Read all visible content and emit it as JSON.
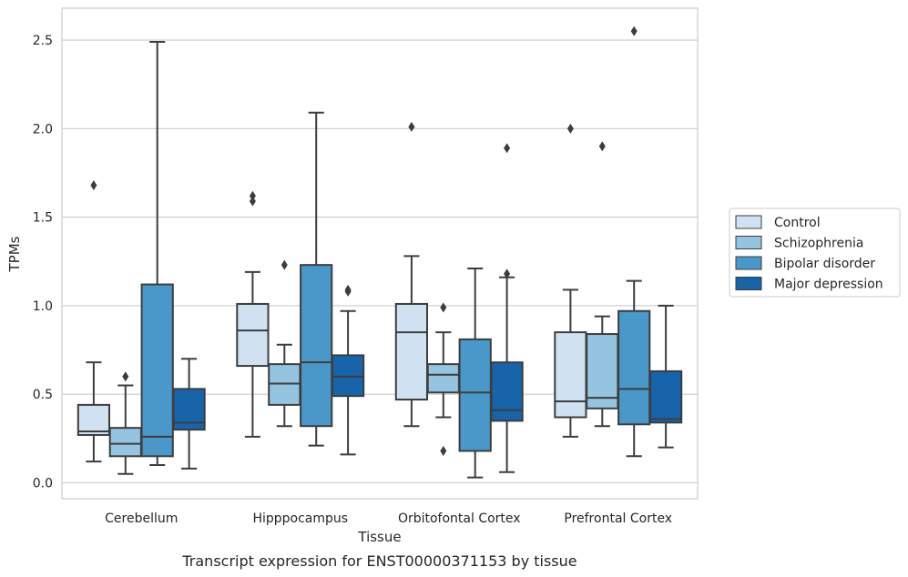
{
  "caption": "Transcript expression for ENST00000371153 by tissue",
  "chart_data": {
    "type": "box",
    "xlabel": "Tissue",
    "ylabel": "TPMs",
    "ylim": [
      -0.09,
      2.68
    ],
    "yticks": [
      "0.0",
      "0.5",
      "1.0",
      "1.5",
      "2.0",
      "2.5"
    ],
    "grid": true,
    "legend_position": "right",
    "categories": [
      "Cerebellum",
      "Hipppocampus",
      "Orbitofontal Cortex",
      "Prefrontal Cortex"
    ],
    "series": [
      {
        "name": "Control",
        "color": "#d0e1f2",
        "boxes": [
          {
            "whislo": 0.12,
            "q1": 0.27,
            "med": 0.29,
            "q3": 0.44,
            "whishi": 0.68,
            "fliers": [
              1.68
            ]
          },
          {
            "whislo": 0.26,
            "q1": 0.66,
            "med": 0.86,
            "q3": 1.01,
            "whishi": 1.19,
            "fliers": [
              1.59,
              1.62
            ]
          },
          {
            "whislo": 0.32,
            "q1": 0.47,
            "med": 0.85,
            "q3": 1.01,
            "whishi": 1.28,
            "fliers": [
              2.01
            ]
          },
          {
            "whislo": 0.26,
            "q1": 0.37,
            "med": 0.46,
            "q3": 0.85,
            "whishi": 1.09,
            "fliers": [
              2.0
            ]
          }
        ]
      },
      {
        "name": "Schizophrenia",
        "color": "#94c4df",
        "boxes": [
          {
            "whislo": 0.05,
            "q1": 0.15,
            "med": 0.22,
            "q3": 0.31,
            "whishi": 0.55,
            "fliers": [
              0.6
            ]
          },
          {
            "whislo": 0.32,
            "q1": 0.44,
            "med": 0.56,
            "q3": 0.67,
            "whishi": 0.78,
            "fliers": [
              1.23
            ]
          },
          {
            "whislo": 0.37,
            "q1": 0.51,
            "med": 0.61,
            "q3": 0.67,
            "whishi": 0.85,
            "fliers": [
              0.99,
              0.18
            ]
          },
          {
            "whislo": 0.32,
            "q1": 0.42,
            "med": 0.48,
            "q3": 0.84,
            "whishi": 0.94,
            "fliers": [
              1.9
            ]
          }
        ]
      },
      {
        "name": "Bipolar disorder",
        "color": "#4a98c9",
        "boxes": [
          {
            "whislo": 0.1,
            "q1": 0.15,
            "med": 0.26,
            "q3": 1.12,
            "whishi": 2.49,
            "fliers": []
          },
          {
            "whislo": 0.21,
            "q1": 0.32,
            "med": 0.68,
            "q3": 1.23,
            "whishi": 2.09,
            "fliers": []
          },
          {
            "whislo": 0.03,
            "q1": 0.18,
            "med": 0.51,
            "q3": 0.81,
            "whishi": 1.21,
            "fliers": []
          },
          {
            "whislo": 0.15,
            "q1": 0.33,
            "med": 0.53,
            "q3": 0.97,
            "whishi": 1.14,
            "fliers": [
              2.55
            ]
          }
        ]
      },
      {
        "name": "Major depression",
        "color": "#1764ab",
        "boxes": [
          {
            "whislo": 0.08,
            "q1": 0.3,
            "med": 0.34,
            "q3": 0.53,
            "whishi": 0.7,
            "fliers": []
          },
          {
            "whislo": 0.16,
            "q1": 0.49,
            "med": 0.6,
            "q3": 0.72,
            "whishi": 0.97,
            "fliers": [
              1.08,
              1.09
            ]
          },
          {
            "whislo": 0.06,
            "q1": 0.35,
            "med": 0.41,
            "q3": 0.68,
            "whishi": 1.16,
            "fliers": [
              1.18,
              1.89
            ]
          },
          {
            "whislo": 0.2,
            "q1": 0.34,
            "med": 0.36,
            "q3": 0.63,
            "whishi": 1.0,
            "fliers": []
          }
        ]
      }
    ]
  }
}
